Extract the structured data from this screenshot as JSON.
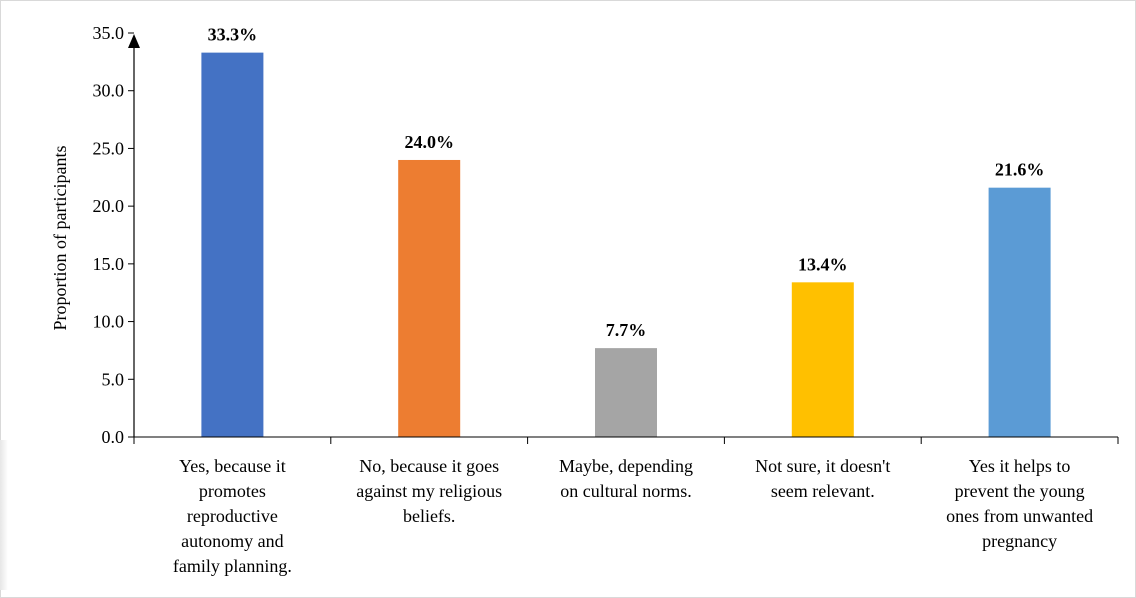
{
  "chart_data": {
    "type": "bar",
    "categories": [
      [
        "Yes, because it",
        "promotes",
        "reproductive",
        "autonomy and",
        "family planning."
      ],
      [
        "No, because it goes",
        "against my religious",
        "beliefs."
      ],
      [
        "Maybe, depending",
        "on cultural norms."
      ],
      [
        "Not sure, it doesn't",
        "seem relevant."
      ],
      [
        "Yes it helps to",
        "prevent the young",
        "ones from unwanted",
        "pregnancy"
      ]
    ],
    "values": [
      33.3,
      24.0,
      7.7,
      13.4,
      21.6
    ],
    "data_labels": [
      "33.3%",
      "24.0%",
      "7.7%",
      "13.4%",
      "21.6%"
    ],
    "colors": [
      "#4472C4",
      "#ED7D31",
      "#A5A5A5",
      "#FFC000",
      "#5B9BD5"
    ],
    "title": "",
    "xlabel": "",
    "ylabel": "Proportion of participants",
    "ylim": [
      0,
      35
    ],
    "yticks": [
      "0.0",
      "5.0",
      "10.0",
      "15.0",
      "20.0",
      "25.0",
      "30.0",
      "35.0"
    ],
    "grid": false,
    "legend": "none"
  }
}
